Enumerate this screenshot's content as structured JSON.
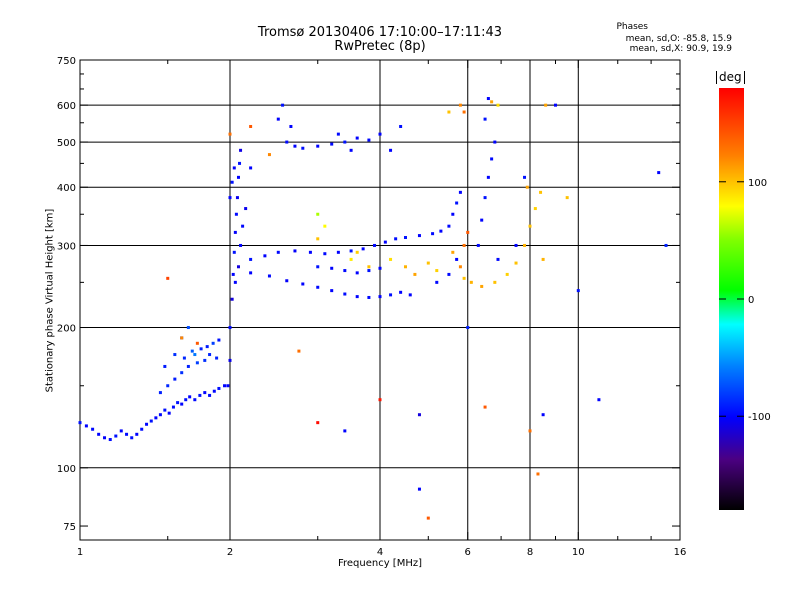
{
  "header": {
    "title_line1": "Tromsø 20130406 17:10:00–17:11:43",
    "title_line2": "RwPretec (8p)"
  },
  "stats": {
    "heading": "Phases",
    "line1": "mean, sd,O: -85.8, 15.9",
    "line2": "mean, sd,X:  90.9, 19.9"
  },
  "colorbar": {
    "unit": "deg",
    "ticks": [
      {
        "label": "100",
        "value": 100
      },
      {
        "label": "0",
        "value": 0
      },
      {
        "label": "-100",
        "value": -100
      }
    ],
    "range": [
      -180,
      180
    ]
  },
  "chart_data": {
    "type": "scatter",
    "title": "Tromsø 20130406 17:10:00–17:11:43",
    "subtitle": "RwPretec (8p)",
    "xlabel": "Frequency [MHz]",
    "ylabel": "Stationary phase Virtual Height [km]",
    "xscale": "log",
    "yscale": "log",
    "xlim": [
      1,
      16
    ],
    "ylim": [
      70,
      750
    ],
    "xticks": [
      {
        "label": "1",
        "value": 1
      },
      {
        "label": "2",
        "value": 2
      },
      {
        "label": "4",
        "value": 4
      },
      {
        "label": "6",
        "value": 6
      },
      {
        "label": "8",
        "value": 8
      },
      {
        "label": "10",
        "value": 10
      },
      {
        "label": "16",
        "value": 16
      }
    ],
    "yticks": [
      {
        "label": "75",
        "value": 75
      },
      {
        "label": "100",
        "value": 100
      },
      {
        "label": "200",
        "value": 200
      },
      {
        "label": "300",
        "value": 300
      },
      {
        "label": "400",
        "value": 400
      },
      {
        "label": "500",
        "value": 500
      },
      {
        "label": "600",
        "value": 600
      },
      {
        "label": "750",
        "value": 750
      }
    ],
    "grid_x": [
      2,
      4,
      6,
      8,
      10
    ],
    "grid_y": [
      100,
      200,
      300,
      400,
      500,
      600
    ],
    "color_key": "phase_deg",
    "points": [
      [
        1.0,
        125,
        -95
      ],
      [
        1.03,
        123,
        -100
      ],
      [
        1.06,
        121,
        -98
      ],
      [
        1.09,
        118,
        -100
      ],
      [
        1.12,
        116,
        -102
      ],
      [
        1.15,
        115,
        -97
      ],
      [
        1.18,
        117,
        -95
      ],
      [
        1.21,
        120,
        -100
      ],
      [
        1.24,
        118,
        -98
      ],
      [
        1.27,
        116,
        -96
      ],
      [
        1.3,
        118,
        -100
      ],
      [
        1.33,
        121,
        -97
      ],
      [
        1.36,
        124,
        -99
      ],
      [
        1.39,
        126,
        -95
      ],
      [
        1.42,
        128,
        -100
      ],
      [
        1.45,
        130,
        -98
      ],
      [
        1.48,
        133,
        -96
      ],
      [
        1.51,
        131,
        -100
      ],
      [
        1.54,
        135,
        -97
      ],
      [
        1.57,
        138,
        -95
      ],
      [
        1.6,
        137,
        -99
      ],
      [
        1.63,
        140,
        -96
      ],
      [
        1.66,
        142,
        -100
      ],
      [
        1.7,
        140,
        -98
      ],
      [
        1.74,
        143,
        -95
      ],
      [
        1.78,
        145,
        -100
      ],
      [
        1.82,
        143,
        -97
      ],
      [
        1.86,
        146,
        -99
      ],
      [
        1.9,
        148,
        -96
      ],
      [
        1.95,
        150,
        -100
      ],
      [
        1.45,
        145,
        -90
      ],
      [
        1.5,
        150,
        -88
      ],
      [
        1.55,
        155,
        -92
      ],
      [
        1.6,
        160,
        -85
      ],
      [
        1.62,
        172,
        -88
      ],
      [
        1.65,
        165,
        -90
      ],
      [
        1.68,
        178,
        -70
      ],
      [
        1.7,
        175,
        -60
      ],
      [
        1.72,
        168,
        -80
      ],
      [
        1.75,
        180,
        -90
      ],
      [
        1.78,
        170,
        -85
      ],
      [
        1.8,
        182,
        -92
      ],
      [
        1.82,
        175,
        -88
      ],
      [
        1.85,
        185,
        -80
      ],
      [
        1.88,
        172,
        -90
      ],
      [
        1.9,
        188,
        -95
      ],
      [
        1.55,
        175,
        -85
      ],
      [
        1.6,
        190,
        -80
      ],
      [
        1.48,
        165,
        -92
      ],
      [
        1.65,
        200,
        -75
      ],
      [
        1.98,
        150,
        -100
      ],
      [
        2.0,
        170,
        -105
      ],
      [
        2.0,
        200,
        -98
      ],
      [
        2.02,
        230,
        -110
      ],
      [
        2.03,
        260,
        -100
      ],
      [
        2.04,
        290,
        -95
      ],
      [
        2.05,
        320,
        -102
      ],
      [
        2.06,
        350,
        -98
      ],
      [
        2.07,
        380,
        -105
      ],
      [
        2.08,
        420,
        -100
      ],
      [
        2.09,
        450,
        -95
      ],
      [
        2.1,
        480,
        -108
      ],
      [
        2.05,
        250,
        -100
      ],
      [
        2.08,
        270,
        -110
      ],
      [
        2.1,
        300,
        -100
      ],
      [
        2.12,
        330,
        -98
      ],
      [
        2.15,
        360,
        -105
      ],
      [
        2.0,
        380,
        -100
      ],
      [
        2.02,
        410,
        -95
      ],
      [
        2.04,
        440,
        -102
      ],
      [
        2.2,
        280,
        -95
      ],
      [
        2.35,
        285,
        -100
      ],
      [
        2.5,
        290,
        -98
      ],
      [
        2.7,
        292,
        -102
      ],
      [
        2.9,
        290,
        -100
      ],
      [
        3.1,
        288,
        -98
      ],
      [
        3.3,
        290,
        -100
      ],
      [
        3.5,
        292,
        -95
      ],
      [
        3.7,
        295,
        -100
      ],
      [
        3.9,
        300,
        -98
      ],
      [
        4.1,
        305,
        -100
      ],
      [
        4.3,
        310,
        -97
      ],
      [
        4.5,
        312,
        -95
      ],
      [
        4.8,
        315,
        -100
      ],
      [
        5.1,
        318,
        -98
      ],
      [
        5.3,
        322,
        -100
      ],
      [
        2.2,
        262,
        -100
      ],
      [
        2.4,
        258,
        -98
      ],
      [
        2.6,
        252,
        -102
      ],
      [
        2.8,
        248,
        -100
      ],
      [
        3.0,
        244,
        -98
      ],
      [
        3.2,
        240,
        -100
      ],
      [
        3.4,
        236,
        -97
      ],
      [
        3.6,
        233,
        -100
      ],
      [
        3.8,
        232,
        -98
      ],
      [
        4.0,
        233,
        -100
      ],
      [
        4.2,
        235,
        -96
      ],
      [
        4.4,
        238,
        -100
      ],
      [
        3.0,
        270,
        -95
      ],
      [
        3.2,
        268,
        -100
      ],
      [
        3.4,
        265,
        -98
      ],
      [
        3.6,
        262,
        -100
      ],
      [
        3.8,
        265,
        -95
      ],
      [
        4.0,
        268,
        -100
      ],
      [
        2.6,
        500,
        -98
      ],
      [
        2.7,
        490,
        -100
      ],
      [
        2.8,
        485,
        -96
      ],
      [
        3.0,
        490,
        -100
      ],
      [
        3.2,
        495,
        -98
      ],
      [
        3.4,
        500,
        -95
      ],
      [
        3.6,
        510,
        -100
      ],
      [
        3.3,
        520,
        -98
      ],
      [
        3.5,
        480,
        -100
      ],
      [
        2.5,
        560,
        -100
      ],
      [
        2.55,
        600,
        -95
      ],
      [
        2.65,
        540,
        -100
      ],
      [
        3.8,
        505,
        -98
      ],
      [
        4.0,
        520,
        -100
      ],
      [
        4.4,
        540,
        -96
      ],
      [
        4.2,
        480,
        -100
      ],
      [
        5.5,
        330,
        -98
      ],
      [
        5.6,
        350,
        -100
      ],
      [
        5.7,
        370,
        -95
      ],
      [
        5.8,
        390,
        -100
      ],
      [
        5.5,
        260,
        -98
      ],
      [
        5.7,
        280,
        -100
      ],
      [
        6.3,
        300,
        -98
      ],
      [
        6.4,
        340,
        -100
      ],
      [
        6.5,
        380,
        -95
      ],
      [
        6.6,
        420,
        -100
      ],
      [
        6.7,
        460,
        -98
      ],
      [
        6.8,
        500,
        -100
      ],
      [
        6.5,
        560,
        -95
      ],
      [
        6.6,
        620,
        -100
      ],
      [
        6.9,
        280,
        -98
      ],
      [
        3.0,
        350,
        60
      ],
      [
        3.1,
        330,
        80
      ],
      [
        3.0,
        310,
        100
      ],
      [
        3.5,
        280,
        85
      ],
      [
        3.6,
        290,
        95
      ],
      [
        3.8,
        270,
        100
      ],
      [
        4.2,
        280,
        90
      ],
      [
        4.5,
        270,
        105
      ],
      [
        4.7,
        260,
        110
      ],
      [
        5.0,
        275,
        100
      ],
      [
        5.2,
        265,
        95
      ],
      [
        5.6,
        290,
        110
      ],
      [
        5.8,
        270,
        120
      ],
      [
        5.9,
        255,
        100
      ],
      [
        6.1,
        250,
        105
      ],
      [
        6.4,
        245,
        110
      ],
      [
        6.8,
        250,
        100
      ],
      [
        7.2,
        260,
        95
      ],
      [
        7.5,
        275,
        100
      ],
      [
        7.8,
        300,
        105
      ],
      [
        8.0,
        330,
        100
      ],
      [
        8.2,
        360,
        95
      ],
      [
        8.4,
        390,
        100
      ],
      [
        7.9,
        400,
        110
      ],
      [
        8.5,
        280,
        105
      ],
      [
        5.9,
        300,
        130
      ],
      [
        6.0,
        320,
        140
      ],
      [
        5.8,
        600,
        120
      ],
      [
        5.9,
        580,
        130
      ],
      [
        6.7,
        610,
        110
      ],
      [
        5.5,
        580,
        100
      ],
      [
        2.0,
        520,
        130
      ],
      [
        2.2,
        540,
        140
      ],
      [
        2.4,
        470,
        120
      ],
      [
        1.5,
        255,
        150
      ],
      [
        2.75,
        178,
        130
      ],
      [
        1.72,
        185,
        140
      ],
      [
        1.6,
        190,
        120
      ],
      [
        4.6,
        235,
        -100
      ],
      [
        5.2,
        250,
        -98
      ],
      [
        7.5,
        300,
        -100
      ],
      [
        7.8,
        420,
        -95
      ],
      [
        6.0,
        200,
        -90
      ],
      [
        8.5,
        130,
        -100
      ],
      [
        8.0,
        120,
        130
      ],
      [
        6.5,
        135,
        140
      ],
      [
        4.8,
        90,
        -100
      ],
      [
        11.0,
        140,
        -100
      ],
      [
        14.5,
        430,
        -100
      ],
      [
        15.0,
        300,
        -90
      ],
      [
        9.0,
        600,
        -100
      ],
      [
        8.6,
        600,
        110
      ],
      [
        2.2,
        440,
        -100
      ],
      [
        4.8,
        130,
        -110
      ],
      [
        4.0,
        140,
        170
      ],
      [
        3.0,
        125,
        175
      ],
      [
        5.0,
        78,
        140
      ],
      [
        8.3,
        97,
        130
      ],
      [
        10.0,
        240,
        -95
      ],
      [
        6.9,
        600,
        90
      ],
      [
        9.5,
        380,
        100
      ],
      [
        3.4,
        120,
        -100
      ]
    ]
  }
}
